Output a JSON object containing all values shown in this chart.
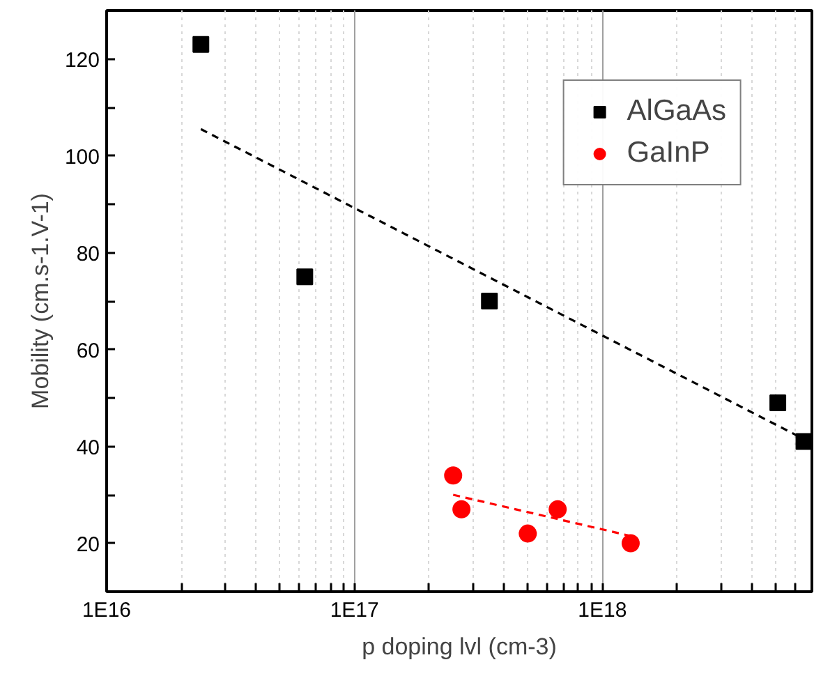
{
  "chart_data": {
    "type": "scatter",
    "xlabel": "p doping lvl (cm-3)",
    "ylabel": "Mobility (cm.s-1.V-1)",
    "log": "x",
    "xlim": [
      1e+16,
      7e+18
    ],
    "ylim": [
      10,
      130
    ],
    "xticks": [
      {
        "value": 1e+16,
        "label": "1E16"
      },
      {
        "value": 2e+16,
        "label": null
      },
      {
        "value": 3e+16,
        "label": null
      },
      {
        "value": 4e+16,
        "label": null
      },
      {
        "value": 5e+16,
        "label": null
      },
      {
        "value": 6e+16,
        "label": null
      },
      {
        "value": 7e+16,
        "label": null
      },
      {
        "value": 8e+16,
        "label": null
      },
      {
        "value": 9e+16,
        "label": null
      },
      {
        "value": 1e+17,
        "label": "1E17"
      },
      {
        "value": 2e+17,
        "label": null
      },
      {
        "value": 3e+17,
        "label": null
      },
      {
        "value": 4e+17,
        "label": null
      },
      {
        "value": 5e+17,
        "label": null
      },
      {
        "value": 6e+17,
        "label": null
      },
      {
        "value": 7e+17,
        "label": null
      },
      {
        "value": 8e+17,
        "label": null
      },
      {
        "value": 9e+17,
        "label": null
      },
      {
        "value": 1e+18,
        "label": "1E18"
      },
      {
        "value": 2e+18,
        "label": null
      },
      {
        "value": 3e+18,
        "label": null
      },
      {
        "value": 4e+18,
        "label": null
      },
      {
        "value": 5e+18,
        "label": null
      },
      {
        "value": 6e+18,
        "label": null
      }
    ],
    "yticks": [
      20,
      {
        "value": 30,
        "label": null
      },
      40,
      {
        "value": 50,
        "label": null
      },
      60,
      {
        "value": 70,
        "label": null
      },
      80,
      {
        "value": 90,
        "label": null
      },
      100,
      {
        "value": 110,
        "label": null
      },
      120
    ],
    "grid": "x",
    "legend": "top right",
    "series": [
      {
        "name": "AlGaAs",
        "color": "#000000",
        "marker": "square",
        "x": [
          2.4e+16,
          6.3e+16,
          3.5e+17,
          5.1e+18,
          6.5e+18
        ],
        "values": [
          123,
          75,
          70,
          49,
          41
        ]
      },
      {
        "name": "GaInP",
        "color": "#ff0000",
        "marker": "circle",
        "x": [
          2.5e+17,
          2.7e+17,
          5e+17,
          6.6e+17,
          1.3e+18
        ],
        "values": [
          34,
          27,
          22,
          27,
          20
        ]
      },
      {
        "type": "line",
        "color": "#000000",
        "line_style": "dashed",
        "x": [
          2.4e+16,
          6.5e+18
        ],
        "values": [
          105.5,
          41.5
        ]
      },
      {
        "type": "line",
        "color": "#ff0000",
        "line_style": "dashed",
        "x": [
          2.5e+17,
          1.3e+18
        ],
        "values": [
          30,
          21.5
        ]
      }
    ]
  }
}
